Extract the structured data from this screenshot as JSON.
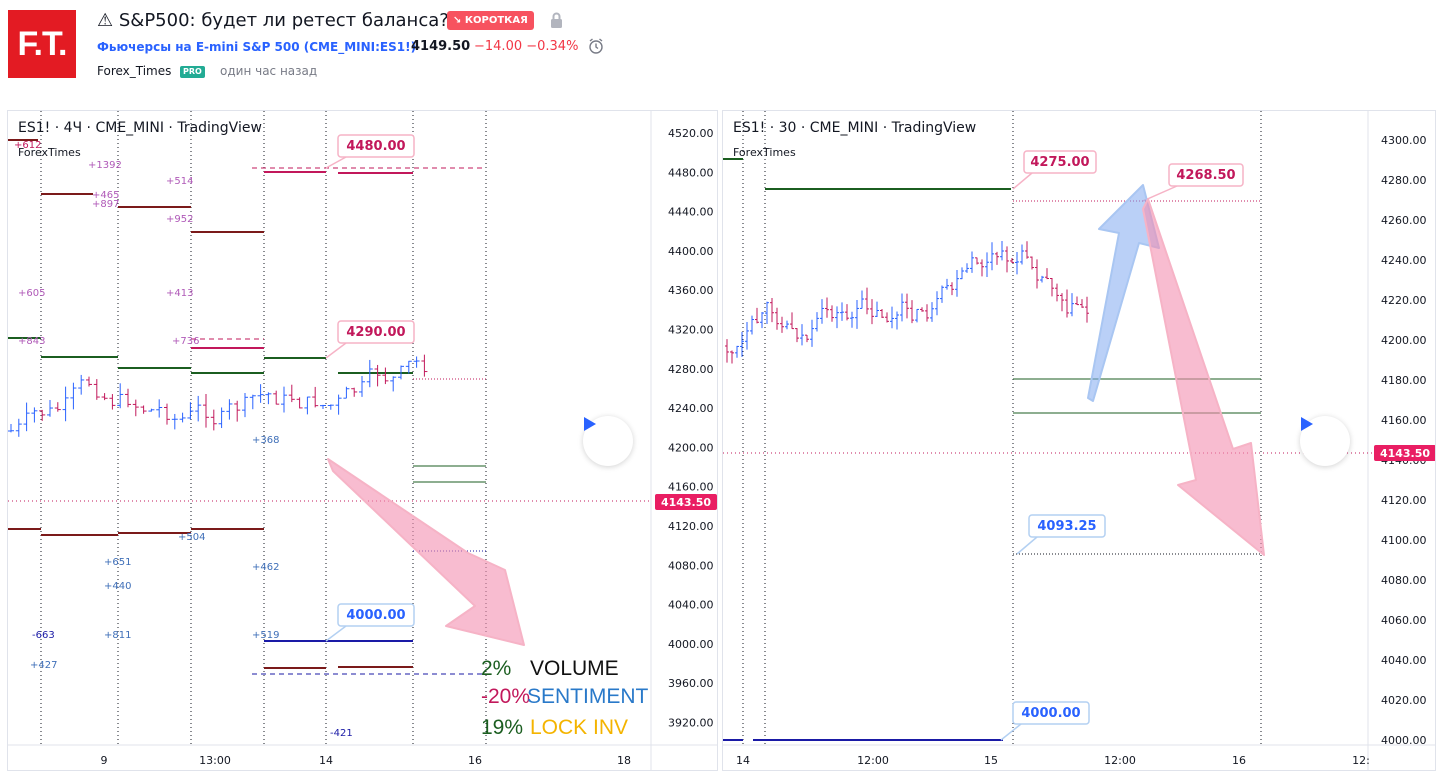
{
  "header": {
    "logo_text": "F.T.",
    "title": "⚠ S&P500: будет ли ретест баланса?",
    "badge": "↘ КОРОТКАЯ",
    "symbol_text": "Фьючерсы на E-mini S&P 500 (CME_MINI:ES1!)",
    "price": "4149.50",
    "change": "−14.00  −0.34%",
    "author": "Forex_Times",
    "pro_badge": "PRO",
    "time_ago": "один час назад"
  },
  "left_chart": {
    "label": "ES1! · 4Ч · CME_MINI · TradingView",
    "sublabel": "ForexTimes",
    "y_ticks": [
      "4520.00",
      "4480.00",
      "4440.00",
      "4400.00",
      "4360.00",
      "4320.00",
      "4280.00",
      "4240.00",
      "4200.00",
      "4160.00",
      "4120.00",
      "4080.00",
      "4040.00",
      "4000.00",
      "3960.00",
      "3920.00"
    ],
    "x_ticks": [
      "9",
      "13:00",
      "14",
      "16",
      "18"
    ],
    "current_price": "4143.50",
    "callouts": [
      "4480.00",
      "4290.00",
      "4000.00"
    ],
    "level_labels": [
      "+612",
      "+1392",
      "+465",
      "+897",
      "+514",
      "+952",
      "+605",
      "+413",
      "+843",
      "+736",
      "+368",
      "+504",
      "+651",
      "+440",
      "+462",
      "+811",
      "+519",
      "-663",
      "+427",
      "-421"
    ],
    "stats": [
      {
        "pct": "2%",
        "name": "VOLUME",
        "pct_color": "#1b5e20",
        "name_color": "#111111"
      },
      {
        "pct": "-20%",
        "name": "SENTIMENT",
        "pct_color": "#c2185b",
        "name_color": "#2979c9"
      },
      {
        "pct": "19%",
        "name": "LOCK INV",
        "pct_color": "#1b5e20",
        "name_color": "#f4b400"
      }
    ]
  },
  "right_chart": {
    "label": "ES1! · 30 · CME_MINI · TradingView",
    "sublabel": "ForexTimes",
    "y_ticks": [
      "4300.00",
      "4280.00",
      "4260.00",
      "4240.00",
      "4220.00",
      "4200.00",
      "4180.00",
      "4160.00",
      "4140.00",
      "4120.00",
      "4100.00",
      "4080.00",
      "4060.00",
      "4040.00",
      "4020.00",
      "4000.00"
    ],
    "x_ticks": [
      "14",
      "12:00",
      "15",
      "12:00",
      "16",
      "12:"
    ],
    "current_price": "4143.50",
    "callouts": [
      "4275.00",
      "4268.50",
      "4093.25",
      "4000.00"
    ]
  },
  "colors": {
    "up": "#2962ff",
    "down": "#c2185b",
    "accent": "#f23645",
    "green": "#1b5e20",
    "maroon": "#7b1a1a",
    "navy": "#1a1aa6"
  },
  "icons": {
    "lock": "lock-icon",
    "alarm": "alarm-clock-icon",
    "play": "play-icon"
  }
}
